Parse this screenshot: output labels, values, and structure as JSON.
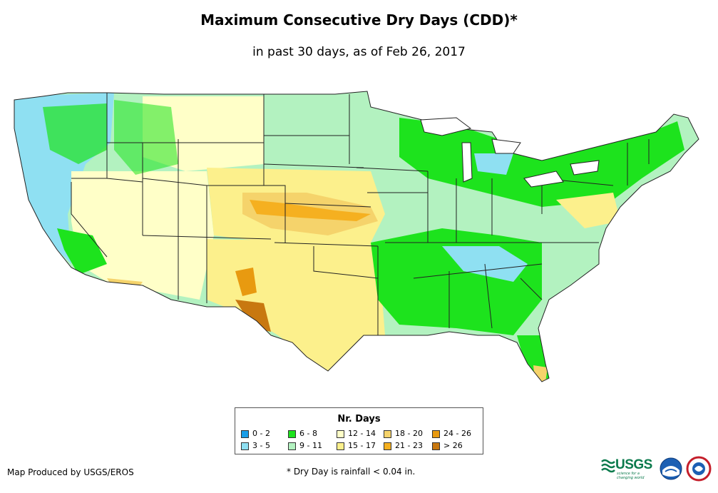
{
  "title": "Maximum Consecutive Dry Days (CDD)*",
  "subtitle": "in past 30 days, as of Feb 26, 2017",
  "legend": {
    "title": "Nr. Days",
    "items": [
      {
        "label": "0 - 2",
        "color": "#1a9ee8"
      },
      {
        "label": "3 - 5",
        "color": "#8fe0f2"
      },
      {
        "label": "6 - 8",
        "color": "#1de31d"
      },
      {
        "label": "9 - 11",
        "color": "#b3f2c0"
      },
      {
        "label": "12 - 14",
        "color": "#ffffc8"
      },
      {
        "label": "15 - 17",
        "color": "#fcf08c"
      },
      {
        "label": "18 - 20",
        "color": "#f5d36b"
      },
      {
        "label": "21 - 23",
        "color": "#f5b020"
      },
      {
        "label": "24 - 26",
        "color": "#e89a10"
      },
      {
        "label": "> 26",
        "color": "#c87810"
      }
    ]
  },
  "credit": "Map Produced by USGS/EROS",
  "footnote": "* Dry Day is rainfall < 0.04 in.",
  "logos": {
    "usgs": "USGS",
    "usgs_tagline": "science for a changing world",
    "noaa": "noaa-logo",
    "nws": "nws-logo"
  },
  "map": {
    "region": "Contiguous United States",
    "features": "state-boundaries"
  }
}
